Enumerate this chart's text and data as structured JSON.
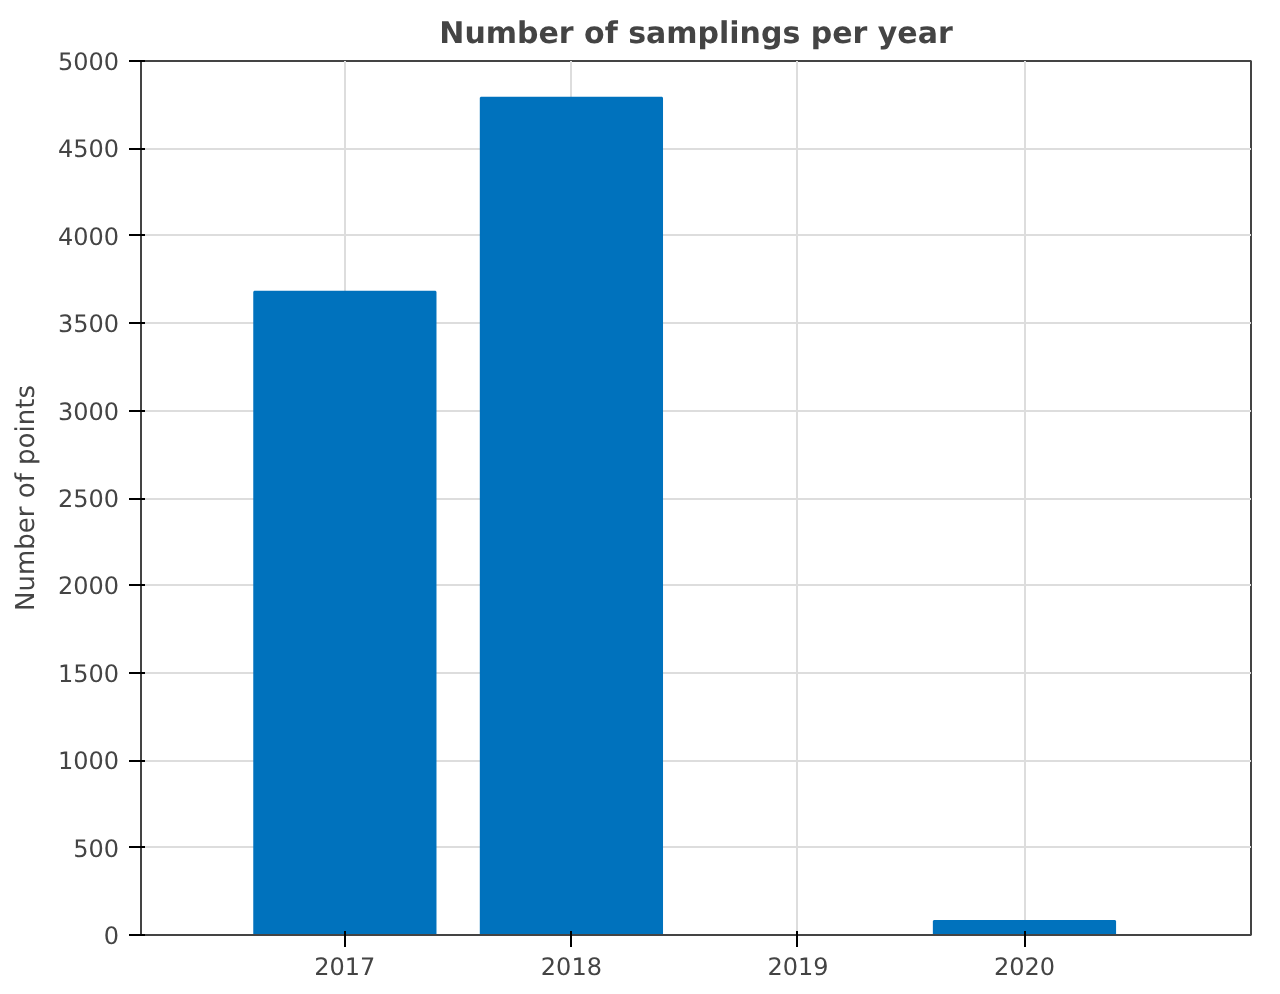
{
  "chart_data": {
    "type": "bar",
    "title": "Number of samplings per year",
    "ylabel": "Number of points",
    "x": [
      2017,
      2018,
      2019,
      2020
    ],
    "values": [
      3680,
      4790,
      0,
      80
    ],
    "color": "#0072bd",
    "xlim": [
      2016.1,
      2021.0
    ],
    "xticks": [
      2017,
      2018,
      2019,
      2020
    ],
    "ylim": [
      0,
      5000
    ],
    "yticks": [
      0,
      500,
      1000,
      1500,
      2000,
      2500,
      3000,
      3500,
      4000,
      4500,
      5000
    ],
    "grid": true
  }
}
